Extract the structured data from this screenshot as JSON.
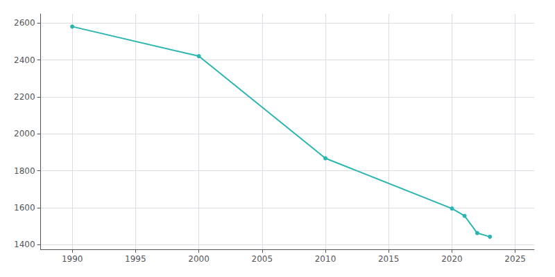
{
  "chart_data": {
    "type": "line",
    "x": [
      1990,
      2000,
      2010,
      2020,
      2021,
      2022,
      2023
    ],
    "values": [
      2581,
      2421,
      1868,
      1596,
      1556,
      1463,
      1443
    ],
    "color": "#2ab5b0",
    "marker": "circle",
    "xlim": [
      1987.5,
      2026.5
    ],
    "xticks": [
      1990,
      1995,
      2000,
      2005,
      2010,
      2015,
      2020,
      2025
    ],
    "ylim": [
      1375,
      2650
    ],
    "yticks": [
      1400,
      1600,
      1800,
      2000,
      2200,
      2400,
      2600
    ],
    "grid": true
  }
}
